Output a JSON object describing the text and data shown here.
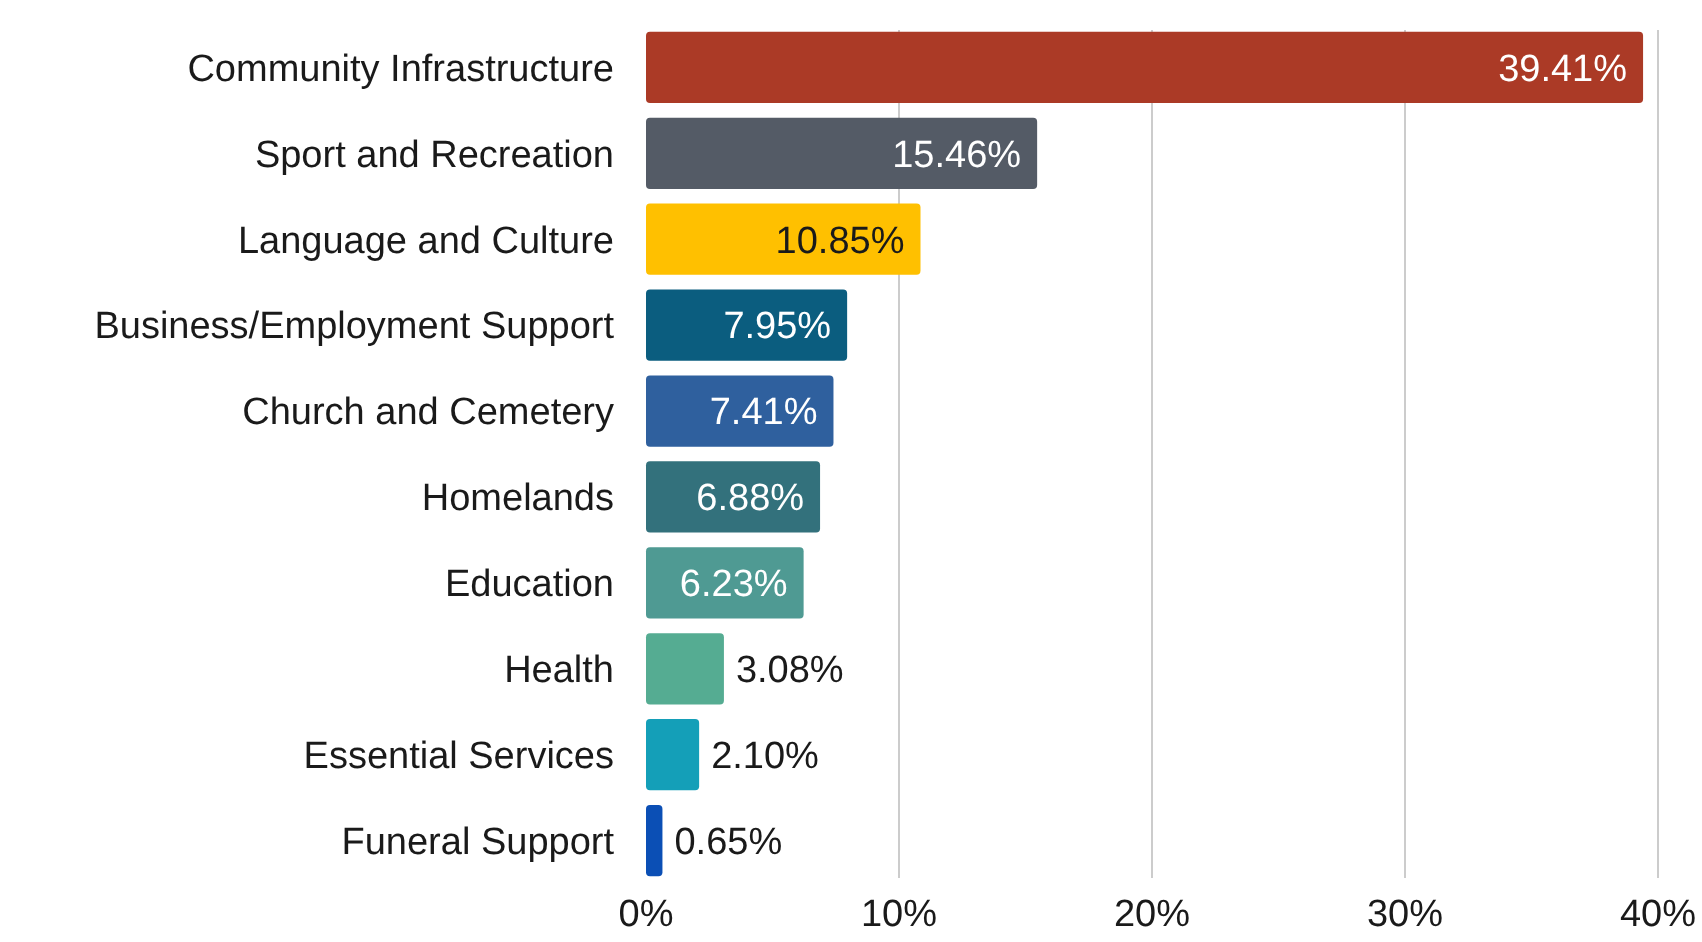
{
  "chart_data": {
    "type": "bar",
    "orientation": "horizontal",
    "categories": [
      "Community Infrastructure",
      "Sport and Recreation",
      "Language and Culture",
      "Business/Employment Support",
      "Church and Cemetery",
      "Homelands",
      "Education",
      "Health",
      "Essential Services",
      "Funeral Support"
    ],
    "values": [
      39.41,
      15.46,
      10.85,
      7.95,
      7.41,
      6.88,
      6.23,
      3.08,
      2.1,
      0.65
    ],
    "colors": [
      "#ab3a26",
      "#545b66",
      "#ffc000",
      "#0b5d7f",
      "#2f609e",
      "#33717c",
      "#4f9a93",
      "#55ac92",
      "#149fb8",
      "#0b4fb5"
    ],
    "value_labels": [
      "39.41%",
      "15.46%",
      "10.85%",
      "7.95%",
      "7.41%",
      "6.88%",
      "6.23%",
      "3.08%",
      "2.10%",
      "0.65%"
    ],
    "xlim": [
      0,
      40
    ],
    "xticks": [
      {
        "value": 0,
        "label": "0%"
      },
      {
        "value": 10,
        "label": "10%"
      },
      {
        "value": 20,
        "label": "20%"
      },
      {
        "value": 30,
        "label": "30%"
      },
      {
        "value": 40,
        "label": "40%"
      }
    ],
    "grid": "x"
  }
}
